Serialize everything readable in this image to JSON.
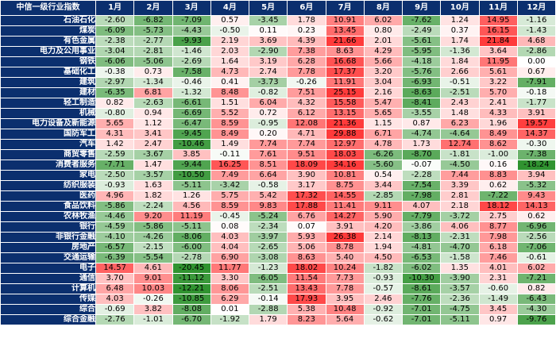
{
  "corner_label": "中信一级行业指数",
  "months": [
    "1月",
    "2月",
    "3月",
    "4月",
    "5月",
    "6月",
    "7月",
    "8月",
    "9月",
    "10月",
    "11月",
    "12月"
  ],
  "colors": {
    "header_bg": "#0b2f6e",
    "header_text": "#ffffff",
    "grid": "#ffffff",
    "positive": "#ff2a2a",
    "negative": "#1e8a1e",
    "neutral": "#ffffff"
  },
  "rows": [
    {
      "label": "石油石化",
      "values": [
        -2.6,
        -6.82,
        -7.09,
        0.57,
        -3.45,
        1.78,
        10.91,
        6.02,
        -7.62,
        1.24,
        14.95,
        -1.16
      ]
    },
    {
      "label": "煤炭",
      "values": [
        -6.09,
        -5.73,
        -4.43,
        -0.5,
        0.11,
        0.23,
        13.45,
        0.8,
        -2.49,
        0.37,
        16.15,
        -1.43
      ]
    },
    {
      "label": "有色金属",
      "values": [
        -2.38,
        -2.77,
        -9.93,
        2.19,
        3.69,
        4.39,
        21.66,
        2.01,
        -5.61,
        1.74,
        21.84,
        4.68
      ]
    },
    {
      "label": "电力及公用事业",
      "values": [
        -3.04,
        -2.81,
        -1.46,
        2.03,
        -2.9,
        7.38,
        8.63,
        4.29,
        -5.95,
        -1.36,
        3.64,
        -2.86
      ]
    },
    {
      "label": "钢铁",
      "values": [
        -6.06,
        -5.06,
        -2.69,
        1.64,
        3.19,
        6.28,
        16.68,
        5.66,
        -4.18,
        1.84,
        11.95,
        0.0
      ]
    },
    {
      "label": "基础化工",
      "values": [
        -0.38,
        0.73,
        -7.58,
        4.73,
        2.74,
        7.78,
        17.37,
        3.2,
        -5.76,
        2.66,
        5.61,
        0.67
      ]
    },
    {
      "label": "建筑",
      "values": [
        -2.97,
        -1.34,
        -0.46,
        0.41,
        -3.73,
        -0.26,
        11.91,
        3.04,
        -6.93,
        -0.51,
        3.22,
        -7.91
      ]
    },
    {
      "label": "建材",
      "values": [
        -6.35,
        6.81,
        -1.32,
        8.48,
        -0.82,
        7.51,
        25.15,
        2.16,
        -8.63,
        -2.51,
        5.7,
        -0.18
      ]
    },
    {
      "label": "轻工制造",
      "values": [
        0.82,
        -2.63,
        -6.61,
        1.51,
        6.04,
        4.32,
        15.58,
        5.47,
        -8.41,
        2.43,
        2.41,
        -1.77
      ]
    },
    {
      "label": "机械",
      "values": [
        -0.8,
        0.94,
        -6.69,
        5.52,
        0.72,
        6.12,
        13.15,
        5.65,
        -3.55,
        1.48,
        4.33,
        3.91
      ]
    },
    {
      "label": "电力设备及新能源",
      "values": [
        5.65,
        1.12,
        -6.47,
        8.59,
        -0.95,
        12.08,
        21.36,
        1.15,
        0.87,
        6.23,
        1.96,
        19.57
      ]
    },
    {
      "label": "国防军工",
      "values": [
        4.31,
        3.41,
        -9.45,
        8.49,
        0.2,
        4.71,
        29.88,
        6.71,
        -4.74,
        -4.64,
        8.49,
        14.37
      ]
    },
    {
      "label": "汽车",
      "values": [
        1.42,
        2.47,
        -10.46,
        1.49,
        7.74,
        7.74,
        12.97,
        4.78,
        1.73,
        12.74,
        8.62,
        -0.3
      ]
    },
    {
      "label": "商贸零售",
      "values": [
        -2.59,
        -3.67,
        3.85,
        -0.11,
        7.61,
        9.51,
        18.03,
        -6.26,
        -8.7,
        -1.81,
        -1.0,
        -7.38
      ]
    },
    {
      "label": "消费者服务",
      "values": [
        -7.71,
        1.47,
        -9.44,
        16.25,
        8.51,
        18.09,
        34.16,
        -5.6,
        -0.07,
        -4.5,
        0.16,
        -18.24
      ]
    },
    {
      "label": "家电",
      "values": [
        -2.5,
        -3.57,
        -10.5,
        7.49,
        6.64,
        3.9,
        10.81,
        0.54,
        -2.28,
        7.44,
        8.83,
        3.94
      ]
    },
    {
      "label": "纺织服装",
      "values": [
        -0.93,
        1.63,
        -5.11,
        -3.42,
        -0.58,
        3.17,
        8.75,
        3.44,
        -7.54,
        3.39,
        0.62,
        -5.32
      ]
    },
    {
      "label": "医药",
      "values": [
        4.96,
        1.82,
        1.26,
        5.75,
        5.42,
        17.32,
        14.55,
        -2.85,
        -7.98,
        2.81,
        -7.22,
        9.43
      ]
    },
    {
      "label": "食品饮料",
      "values": [
        -5.86,
        -2.24,
        4.56,
        8.59,
        9.83,
        17.88,
        11.41,
        9.11,
        4.07,
        2.18,
        18.12,
        14.13
      ]
    },
    {
      "label": "农林牧渔",
      "values": [
        -4.46,
        9.2,
        11.19,
        -0.45,
        -5.24,
        6.76,
        14.27,
        5.9,
        -7.79,
        -3.72,
        2.75,
        0.62
      ]
    },
    {
      "label": "银行",
      "values": [
        -4.59,
        -5.86,
        -5.11,
        0.08,
        -2.34,
        0.07,
        3.91,
        4.2,
        -3.86,
        4.06,
        8.77,
        -6.96
      ]
    },
    {
      "label": "非银行金融",
      "values": [
        -4.1,
        -4.26,
        -8.06,
        4.03,
        -3.97,
        5.93,
        26.38,
        2.14,
        -8.13,
        -2.31,
        7.98,
        -2.56
      ]
    },
    {
      "label": "房地产",
      "values": [
        -6.57,
        -2.15,
        -6.0,
        4.04,
        -2.65,
        5.06,
        8.78,
        1.94,
        -4.81,
        -4.7,
        6.18,
        -7.06
      ]
    },
    {
      "label": "交通运输",
      "values": [
        -6.39,
        -5.54,
        -2.78,
        6.9,
        -3.08,
        8.63,
        5.4,
        4.5,
        -6.53,
        -1.58,
        7.46,
        -0.61
      ]
    },
    {
      "label": "电子",
      "values": [
        14.57,
        4.61,
        -20.45,
        11.77,
        -1.23,
        18.02,
        10.24,
        -1.82,
        -6.02,
        1.35,
        4.01,
        6.02
      ]
    },
    {
      "label": "通信",
      "values": [
        3.7,
        9.01,
        -11.12,
        3.3,
        -6.05,
        11.54,
        7.73,
        -0.93,
        -10.3,
        -3.9,
        2.31,
        -7.21
      ]
    },
    {
      "label": "计算机",
      "values": [
        6.48,
        10.03,
        -12.21,
        8.06,
        -2.51,
        13.43,
        7.78,
        -0.57,
        -8.61,
        -3.57,
        -0.6,
        0.82
      ]
    },
    {
      "label": "传媒",
      "values": [
        4.03,
        -0.26,
        -10.85,
        6.29,
        -0.14,
        17.93,
        3.95,
        2.46,
        -7.76,
        -2.36,
        -1.49,
        -6.43
      ]
    },
    {
      "label": "综合",
      "values": [
        -0.69,
        3.82,
        -8.08,
        0.01,
        -2.88,
        5.38,
        10.48,
        -0.92,
        -7.01,
        -4.75,
        3.45,
        -4.3
      ]
    },
    {
      "label": "综合金融",
      "values": [
        -2.76,
        -1.01,
        -6.7,
        -1.92,
        1.79,
        8.23,
        5.64,
        -0.62,
        -7.01,
        -5.11,
        0.97,
        -9.76
      ]
    }
  ]
}
